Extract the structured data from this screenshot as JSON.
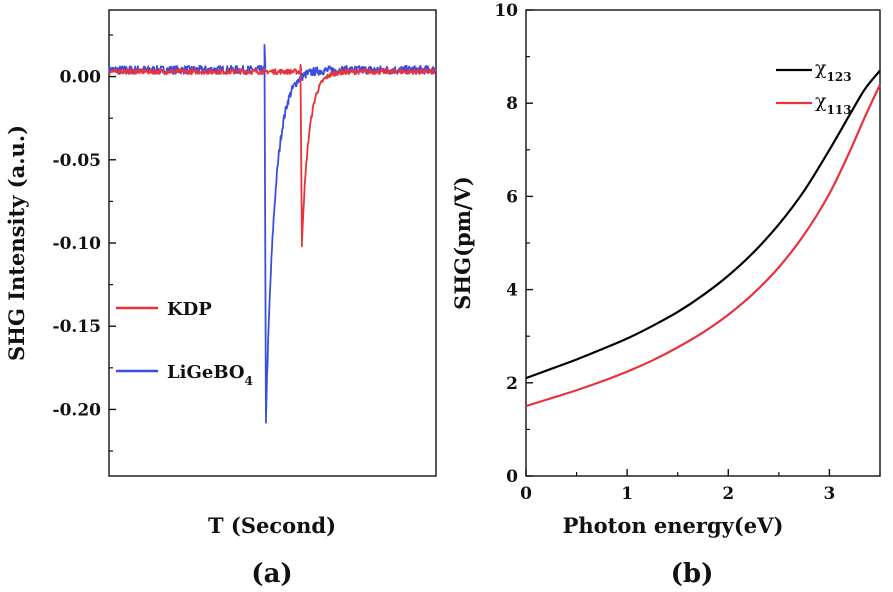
{
  "chart_data": [
    {
      "id": "a",
      "type": "line",
      "panel_label": "(a)",
      "xlabel": "T (Second)",
      "ylabel": "SHG Intensity (a.u.)",
      "ylim": [
        -0.24,
        0.04
      ],
      "yticks": [
        0.0,
        -0.05,
        -0.1,
        -0.15,
        -0.2
      ],
      "ytick_labels": [
        "0.00",
        "-0.05",
        "-0.10",
        "-0.15",
        "-0.20"
      ],
      "xlim": [
        0,
        100
      ],
      "series": [
        {
          "name": "KDP",
          "label_main": "KDP",
          "label_sub": "",
          "color": "#e8323c",
          "baseline": 0.003,
          "noise": 0.0015,
          "dip": {
            "x": 59.0,
            "y_min": -0.102,
            "spike_up": 0.004,
            "recovery": 2.2
          }
        },
        {
          "name": "LiGeBO4",
          "label_main": "LiGeBO",
          "label_sub": "4",
          "color": "#3a4fe0",
          "baseline": 0.004,
          "noise": 0.0025,
          "dip": {
            "x": 48.0,
            "y_min": -0.208,
            "spike_up": 0.015,
            "recovery": 2.8
          }
        }
      ]
    },
    {
      "id": "b",
      "type": "line",
      "panel_label": "(b)",
      "xlabel": "Photon energy(eV)",
      "ylabel": "SHG(pm/V)",
      "xlim": [
        0,
        3.5
      ],
      "ylim": [
        0,
        10
      ],
      "xticks": [
        0,
        1,
        2,
        3
      ],
      "yticks": [
        0,
        2,
        4,
        6,
        8,
        10
      ],
      "series": [
        {
          "name": "χ123",
          "label_main": "χ",
          "label_sub": "123",
          "color": "#000000",
          "x": [
            0,
            0.25,
            0.5,
            0.75,
            1.0,
            1.25,
            1.5,
            1.75,
            2.0,
            2.25,
            2.5,
            2.75,
            3.0,
            3.2,
            3.35,
            3.5
          ],
          "y": [
            2.1,
            2.3,
            2.5,
            2.72,
            2.95,
            3.22,
            3.52,
            3.88,
            4.3,
            4.8,
            5.4,
            6.12,
            7.0,
            7.75,
            8.3,
            8.7
          ]
        },
        {
          "name": "χ113",
          "label_main": "χ",
          "label_sub": "113",
          "color": "#e8323c",
          "x": [
            0,
            0.25,
            0.5,
            0.75,
            1.0,
            1.25,
            1.5,
            1.75,
            2.0,
            2.25,
            2.5,
            2.75,
            3.0,
            3.2,
            3.35,
            3.5
          ],
          "y": [
            1.5,
            1.67,
            1.84,
            2.03,
            2.24,
            2.48,
            2.76,
            3.08,
            3.46,
            3.92,
            4.48,
            5.18,
            6.06,
            6.96,
            7.7,
            8.4
          ]
        }
      ]
    }
  ]
}
